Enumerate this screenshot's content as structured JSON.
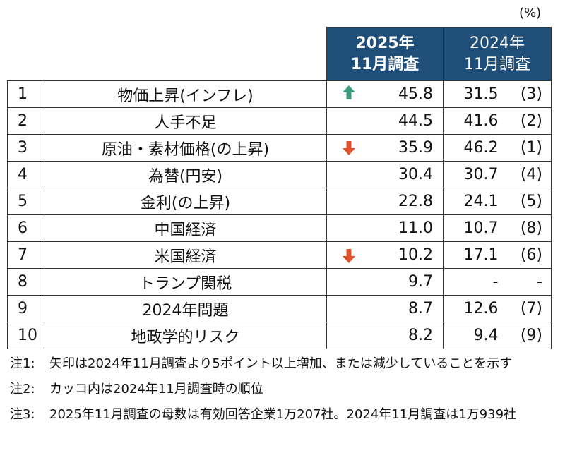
{
  "unit": "(%)",
  "table": {
    "header": [
      "2025年\n11月調査",
      "2024年\n11月調査"
    ],
    "rows": [
      [
        "1",
        "物価上昇(インフレ)",
        "45.8",
        "31.5",
        "(3)"
      ],
      [
        "2",
        "人手不足",
        "44.5",
        "41.6",
        "(2)"
      ],
      [
        "3",
        "原油・素材価格(の上昇)",
        "35.9",
        "46.2",
        "(1)"
      ],
      [
        "4",
        "為替(円安)",
        "30.4",
        "30.7",
        "(4)"
      ],
      [
        "5",
        "金利(の上昇)",
        "22.8",
        "24.1",
        "(5)"
      ],
      [
        "6",
        "中国経済",
        "11.0",
        "10.7",
        "(8)"
      ],
      [
        "7",
        "米国経済",
        "10.2",
        "17.1",
        "(6)"
      ],
      [
        "8",
        "トランプ関税",
        "9.7",
        "-",
        "-"
      ],
      [
        "9",
        "2024年問題",
        "8.7",
        "12.6",
        "(7)"
      ],
      [
        "10",
        "地政学的リスク",
        "8.2",
        "9.4",
        "(9)"
      ]
    ]
  },
  "notes": [
    {
      "label": "注1:",
      "text": "矢印は2024年11月調査より5ポイント以上増加、または減少していることを示す"
    },
    {
      "label": "注2:",
      "text": "カッコ内は2024年11月調査時の順位"
    },
    {
      "label": "注3:",
      "text": "2025年11月調査の母数は有効回答企業1万207社。2024年11月調査は1万939社"
    }
  ]
}
